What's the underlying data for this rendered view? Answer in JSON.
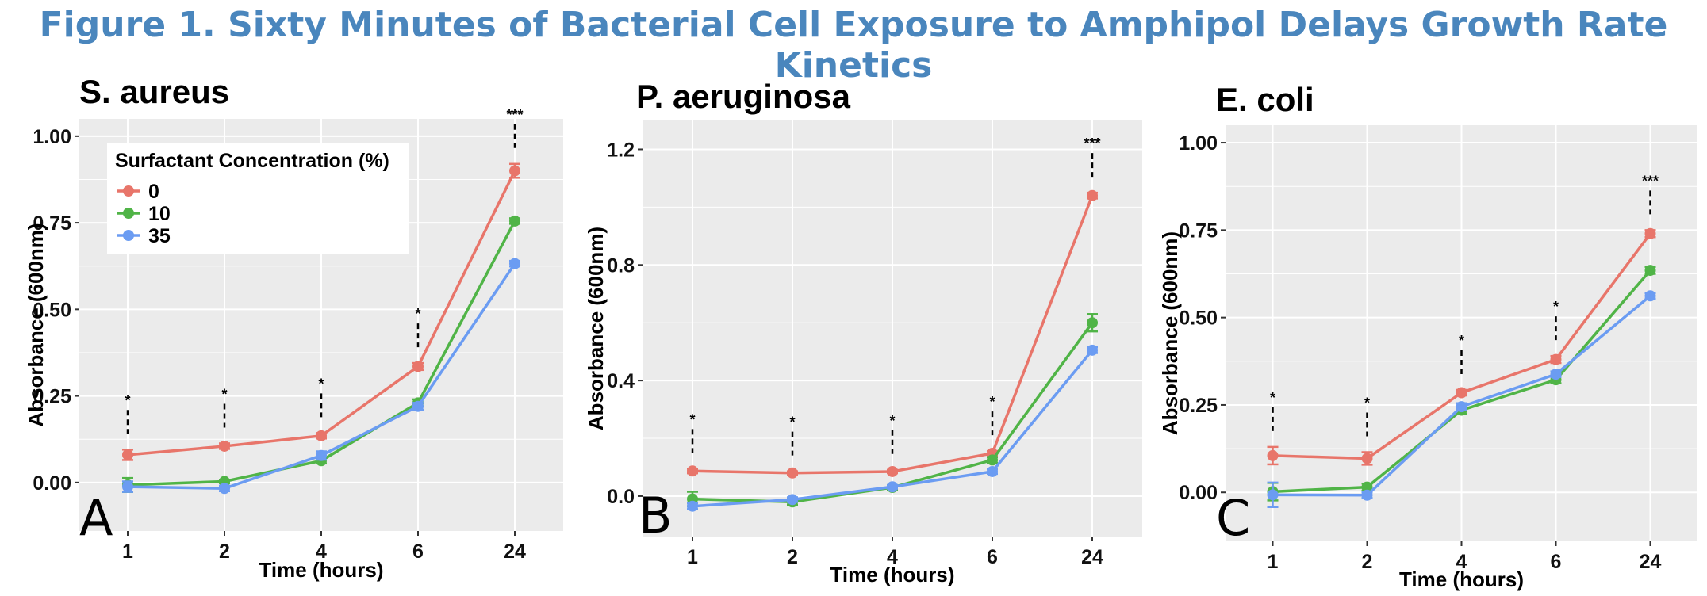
{
  "title": "Figure 1. Sixty Minutes of Bacterial Cell Exposure to Amphipol Delays Growth Rate Kinetics",
  "colors": {
    "0": "#e8756a",
    "10": "#50b447",
    "35": "#6b9cf2",
    "panel": "#ebebeb",
    "grid": "#ffffff",
    "title": "#4a86bd"
  },
  "legend": {
    "title": "Surfactant Concentration (%)",
    "entries": [
      "0",
      "10",
      "35"
    ]
  },
  "chart_data": [
    {
      "type": "line",
      "title": "S. aureus",
      "panel_letter": "A",
      "xlabel": "Time (hours)",
      "ylabel": "Absorbance (600nm)",
      "categories": [
        "1",
        "2",
        "4",
        "6",
        "24"
      ],
      "ylim": [
        -0.14,
        1.05
      ],
      "yticks": [
        0.0,
        0.25,
        0.5,
        0.75,
        1.0
      ],
      "ytick_labels": [
        "0.00",
        "0.25",
        "0.50",
        "0.75",
        "1.00"
      ],
      "legend_position": "top-left",
      "series": [
        {
          "name": "0",
          "values": [
            0.08,
            0.105,
            0.135,
            0.335,
            0.9
          ],
          "errors": [
            0.015,
            0.008,
            0.008,
            0.01,
            0.02
          ]
        },
        {
          "name": "10",
          "values": [
            -0.007,
            0.003,
            0.063,
            0.23,
            0.755
          ],
          "errors": [
            0.02,
            0.005,
            0.008,
            0.01,
            0.008
          ]
        },
        {
          "name": "35",
          "values": [
            -0.012,
            -0.017,
            0.078,
            0.22,
            0.632
          ],
          "errors": [
            0.015,
            0.008,
            0.012,
            0.01,
            0.008
          ]
        }
      ],
      "significance": [
        "*",
        "*",
        "*",
        "*",
        "***"
      ]
    },
    {
      "type": "line",
      "title": "P. aeruginosa",
      "panel_letter": "B",
      "xlabel": "Time (hours)",
      "ylabel": "Absorbance (600nm)",
      "categories": [
        "1",
        "2",
        "4",
        "6",
        "24"
      ],
      "ylim": [
        -0.14,
        1.3
      ],
      "yticks": [
        0.0,
        0.4,
        0.8,
        1.2
      ],
      "ytick_labels": [
        "0.0",
        "0.4",
        "0.8",
        "1.2"
      ],
      "series": [
        {
          "name": "0",
          "values": [
            0.087,
            0.08,
            0.085,
            0.148,
            1.04
          ],
          "errors": [
            0.008,
            0.006,
            0.006,
            0.008,
            0.01
          ]
        },
        {
          "name": "10",
          "values": [
            -0.01,
            -0.02,
            0.03,
            0.125,
            0.6
          ],
          "errors": [
            0.025,
            0.01,
            0.008,
            0.01,
            0.03
          ]
        },
        {
          "name": "35",
          "values": [
            -0.035,
            -0.012,
            0.032,
            0.085,
            0.505
          ],
          "errors": [
            0.01,
            0.008,
            0.006,
            0.008,
            0.01
          ]
        }
      ],
      "significance": [
        "*",
        "*",
        "*",
        "*",
        "***"
      ]
    },
    {
      "type": "line",
      "title": "E. coli",
      "panel_letter": "C",
      "xlabel": "Time (hours)",
      "ylabel": "Absorbance (600nm)",
      "categories": [
        "1",
        "2",
        "4",
        "6",
        "24"
      ],
      "ylim": [
        -0.14,
        1.05
      ],
      "yticks": [
        0.0,
        0.25,
        0.5,
        0.75,
        1.0
      ],
      "ytick_labels": [
        "0.00",
        "0.25",
        "0.50",
        "0.75",
        "1.00"
      ],
      "series": [
        {
          "name": "0",
          "values": [
            0.105,
            0.097,
            0.285,
            0.38,
            0.74
          ],
          "errors": [
            0.025,
            0.018,
            0.008,
            0.01,
            0.01
          ]
        },
        {
          "name": "10",
          "values": [
            0.002,
            0.015,
            0.235,
            0.322,
            0.635
          ],
          "errors": [
            0.025,
            0.01,
            0.01,
            0.01,
            0.01
          ]
        },
        {
          "name": "35",
          "values": [
            -0.007,
            -0.008,
            0.245,
            0.338,
            0.562
          ],
          "errors": [
            0.035,
            0.008,
            0.01,
            0.008,
            0.008
          ]
        }
      ],
      "significance": [
        "*",
        "*",
        "*",
        "*",
        "***"
      ]
    }
  ]
}
